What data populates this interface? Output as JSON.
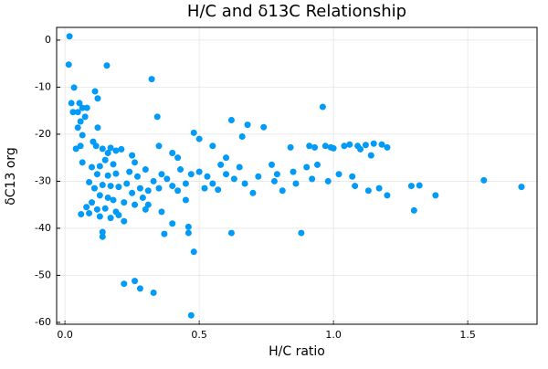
{
  "chart_data": {
    "type": "scatter",
    "title": "H/C and δ13C Relationship",
    "x_label": "H/C ratio",
    "y_label": "δC13 org",
    "color": "#009af9",
    "grid": true,
    "xlim": [
      -0.031,
      1.758
    ],
    "ylim": [
      -60.4,
      2.7
    ],
    "xticks": [
      {
        "value": 0,
        "label": "0.0"
      },
      0.5,
      {
        "value": 1,
        "label": "1.0"
      },
      1.5
    ],
    "yticks": [
      0,
      -10,
      -20,
      -30,
      -40,
      -50,
      -60
    ],
    "x": [
      0.017,
      0.014,
      0.034,
      0.024,
      0.054,
      0.03,
      0.048,
      0.065,
      0.082,
      0.075,
      0.058,
      0.048,
      0.065,
      0.041,
      0.058,
      0.112,
      0.122,
      0.122,
      0.156,
      0.323,
      0.344,
      0.065,
      0.105,
      0.116,
      0.14,
      0.16,
      0.17,
      0.19,
      0.21,
      0.15,
      0.18,
      0.13,
      0.1,
      0.12,
      0.16,
      0.19,
      0.09,
      0.11,
      0.14,
      0.17,
      0.2,
      0.13,
      0.16,
      0.18,
      0.1,
      0.08,
      0.12,
      0.15,
      0.19,
      0.06,
      0.09,
      0.13,
      0.17,
      0.2,
      0.14,
      0.14,
      0.22,
      0.25,
      0.26,
      0.24,
      0.27,
      0.23,
      0.28,
      0.25,
      0.3,
      0.29,
      0.26,
      0.22,
      0.3,
      0.33,
      0.31,
      0.35,
      0.36,
      0.36,
      0.35,
      0.38,
      0.4,
      0.37,
      0.4,
      0.43,
      0.42,
      0.45,
      0.45,
      0.46,
      0.46,
      0.47,
      0.48,
      0.5,
      0.5,
      0.52,
      0.53,
      0.55,
      0.55,
      0.57,
      0.6,
      0.62,
      0.63,
      0.65,
      0.66,
      0.68,
      0.67,
      0.7,
      0.72,
      0.74,
      0.62,
      0.48,
      0.47,
      0.22,
      0.26,
      0.28,
      0.33,
      0.31,
      0.77,
      0.79,
      0.81,
      0.84,
      0.86,
      0.88,
      0.9,
      0.91,
      0.92,
      0.93,
      0.94,
      0.96,
      0.97,
      0.98,
      0.99,
      1.0,
      1.02,
      1.04,
      1.06,
      1.07,
      1.08,
      1.09,
      1.1,
      1.12,
      1.14,
      1.15,
      1.17,
      1.18,
      1.2,
      1.2,
      1.13,
      1.29,
      1.3,
      1.32,
      1.38,
      1.56,
      1.7,
      0.58,
      0.6,
      0.78,
      0.85,
      0.42,
      0.4
    ],
    "values": [
      0.8,
      -5.2,
      -10.1,
      -13.4,
      -13.4,
      -15.3,
      -15.3,
      -14.4,
      -14.4,
      -16.3,
      -17.3,
      -18.6,
      -20.2,
      -23.1,
      -22.5,
      -10.9,
      -12.4,
      -18.6,
      -5.4,
      -8.3,
      -16.3,
      -26.0,
      -21.6,
      -22.5,
      -23.1,
      -24.0,
      -22.9,
      -23.5,
      -23.2,
      -25.5,
      -26.4,
      -26.8,
      -27.0,
      -28.5,
      -28.8,
      -28.4,
      -30.2,
      -31.5,
      -30.8,
      -31.0,
      -31.2,
      -33.0,
      -33.5,
      -34.0,
      -34.5,
      -35.5,
      -36.0,
      -35.8,
      -36.5,
      -37.0,
      -36.8,
      -37.5,
      -37.8,
      -37.2,
      -40.8,
      -41.8,
      -38.5,
      -24.5,
      -26.0,
      -28.0,
      -29.0,
      -30.5,
      -31.5,
      -32.5,
      -27.5,
      -33.5,
      -35.0,
      -34.5,
      -36.0,
      -30.0,
      -32.0,
      -31.5,
      -28.5,
      -36.5,
      -22.5,
      -29.5,
      -31.0,
      -41.2,
      -39.0,
      -27.5,
      -32.0,
      -30.5,
      -34.0,
      -39.7,
      -41.0,
      -28.5,
      -19.7,
      -21.0,
      -28.0,
      -31.5,
      -29.0,
      -22.5,
      -30.5,
      -31.8,
      -28.5,
      -17.0,
      -29.5,
      -27.0,
      -20.5,
      -18.0,
      -30.5,
      -32.5,
      -29.0,
      -18.5,
      -41.0,
      -45.0,
      -58.5,
      -51.8,
      -51.2,
      -52.8,
      -53.7,
      -35.0,
      -26.5,
      -28.5,
      -32.0,
      -22.8,
      -30.5,
      -41.0,
      -27.0,
      -22.5,
      -29.5,
      -22.8,
      -26.5,
      -14.2,
      -22.5,
      -30.0,
      -22.8,
      -23.0,
      -28.5,
      -22.5,
      -22.2,
      -29.0,
      -31.0,
      -22.5,
      -23.2,
      -22.3,
      -24.5,
      -22.0,
      -31.5,
      -22.2,
      -22.8,
      -33.0,
      -32.0,
      -31.0,
      -36.2,
      -30.9,
      -33.0,
      -29.8,
      -31.2,
      -26.5,
      -25.0,
      -30.0,
      -28.0,
      -25.0,
      -24.0
    ]
  }
}
